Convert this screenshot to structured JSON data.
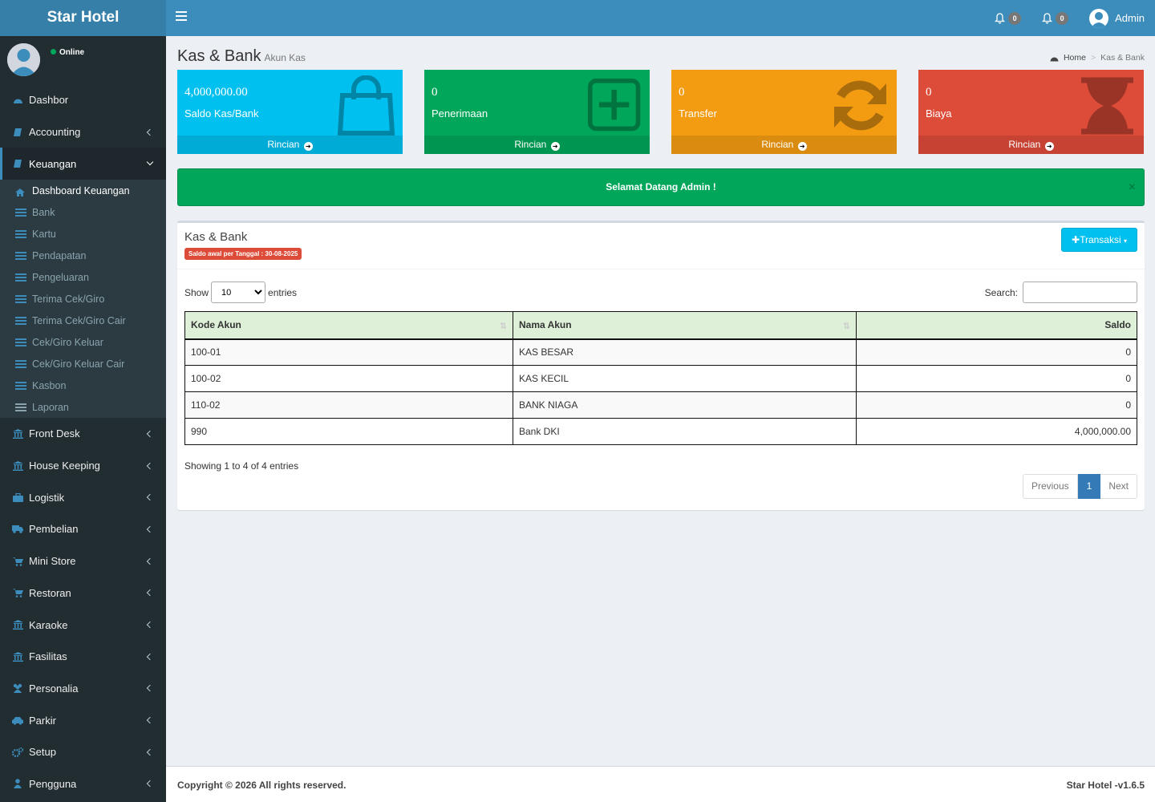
{
  "app": {
    "title": "Star Hotel"
  },
  "topbar": {
    "notif1_count": "0",
    "notif2_count": "0",
    "user_name": "Admin"
  },
  "sidebar": {
    "status": "Online",
    "items": [
      {
        "label": "Dashbor",
        "icon": "dashboard-icon"
      },
      {
        "label": "Accounting",
        "icon": "book-icon"
      },
      {
        "label": "Keuangan",
        "icon": "book-icon"
      },
      {
        "label": "Front Desk",
        "icon": "bank-icon"
      },
      {
        "label": "House Keeping",
        "icon": "bank-icon"
      },
      {
        "label": "Logistik",
        "icon": "briefcase-icon"
      },
      {
        "label": "Pembelian",
        "icon": "truck-icon"
      },
      {
        "label": "Mini Store",
        "icon": "cart-icon"
      },
      {
        "label": "Restoran",
        "icon": "cart-icon"
      },
      {
        "label": "Karaoke",
        "icon": "bank-icon"
      },
      {
        "label": "Fasilitas",
        "icon": "bank-icon"
      },
      {
        "label": "Personalia",
        "icon": "users-icon"
      },
      {
        "label": "Parkir",
        "icon": "car-icon"
      },
      {
        "label": "Setup",
        "icon": "cogs-icon"
      },
      {
        "label": "Pengguna",
        "icon": "user-icon"
      }
    ],
    "submenu": [
      "Dashboard Keuangan",
      "Bank",
      "Kartu",
      "Pendapatan",
      "Pengeluaran",
      "Terima Cek/Giro",
      "Terima Cek/Giro Cair",
      "Cek/Giro Keluar",
      "Cek/Giro Keluar Cair",
      "Kasbon",
      "Laporan"
    ]
  },
  "header": {
    "title": "Kas & Bank",
    "subtitle": "Akun Kas",
    "breadcrumb_home": "Home",
    "breadcrumb_current": "Kas & Bank"
  },
  "boxes": [
    {
      "value": "4,000,000.00",
      "caption": "Saldo Kas/Bank",
      "link": "Rincian",
      "color": "#00c0ef",
      "icon": "shopping-bag-icon"
    },
    {
      "value": "0",
      "caption": "Penerimaan",
      "link": "Rincian",
      "color": "#00a65a",
      "icon": "plus-square-icon"
    },
    {
      "value": "0",
      "caption": "Transfer",
      "link": "Rincian",
      "color": "#f39c12",
      "icon": "refresh-icon"
    },
    {
      "value": "0",
      "caption": "Biaya",
      "link": "Rincian",
      "color": "#dd4b39",
      "icon": "hourglass-icon"
    }
  ],
  "alert": {
    "text": "Selamat Datang Admin !",
    "close": "×"
  },
  "panel": {
    "title": "Kas & Bank",
    "badge": "Saldo awal per Tanggal : 30-08-2025",
    "button": "Transaksi",
    "show_label": "Show",
    "entries_label": "entries",
    "page_size": "10",
    "search_label": "Search:",
    "columns": [
      "Kode Akun",
      "Nama Akun",
      "Saldo"
    ],
    "rows": [
      [
        "100-01",
        "KAS BESAR",
        "0"
      ],
      [
        "100-02",
        "KAS KECIL",
        "0"
      ],
      [
        "110-02",
        "BANK NIAGA",
        "0"
      ],
      [
        "990",
        "Bank DKI",
        "4,000,000.00"
      ]
    ],
    "info": "Showing 1 to 4 of 4 entries",
    "pager": {
      "previous": "Previous",
      "current": "1",
      "next": "Next"
    }
  },
  "footer": {
    "copyright": "Copyright © 2026 All rights reserved.",
    "version": "Star Hotel -v1.6.5"
  }
}
